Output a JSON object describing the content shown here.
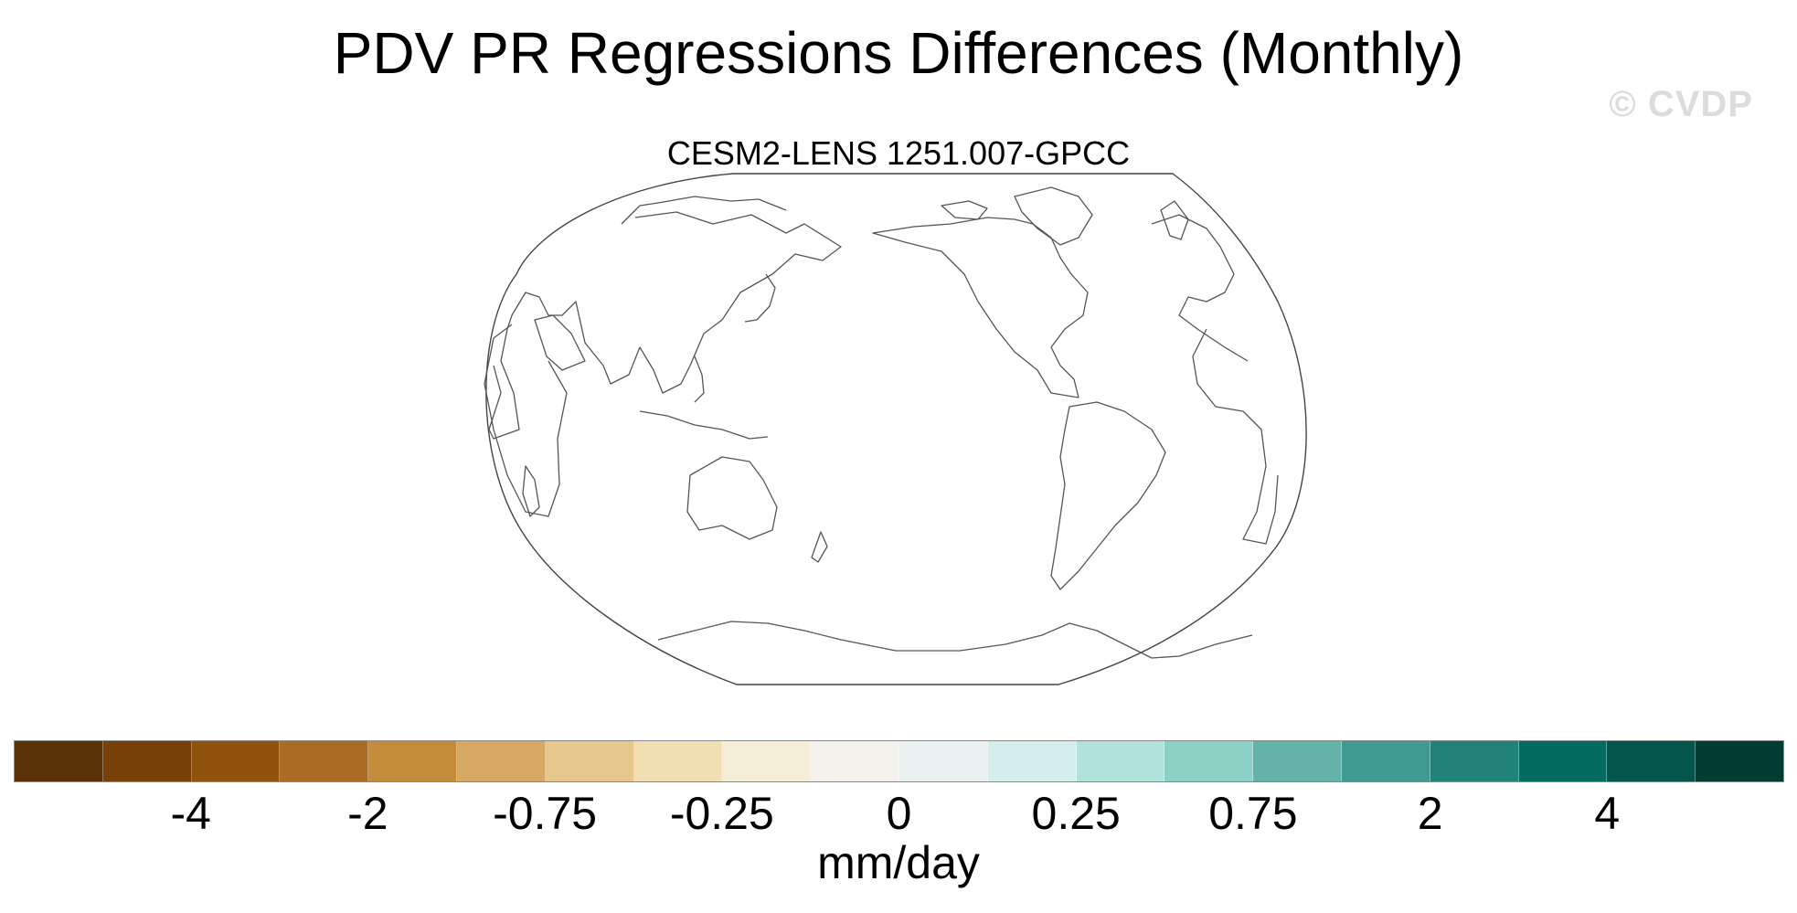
{
  "title": "PDV PR Regressions Differences (Monthly)",
  "watermark": "© CVDP",
  "subtitle": "CESM2-LENS 1251.007-GPCC",
  "colorbar": {
    "units": "mm/day",
    "colors": [
      "#5a3208",
      "#774009",
      "#8f530e",
      "#aa6b22",
      "#c48b3a",
      "#d6a863",
      "#e6c78c",
      "#f1dfb2",
      "#f6edd6",
      "#f5f1ec",
      "#eaf2f1",
      "#d4eeec",
      "#b2e2dc",
      "#8cd1c6",
      "#63b3a9",
      "#3f9b92",
      "#208279",
      "#046b61",
      "#03564b",
      "#013c33"
    ],
    "tick_labels": [
      "-4",
      "-2",
      "-0.75",
      "-0.25",
      "0",
      "0.25",
      "0.75",
      "2",
      "4"
    ]
  }
}
